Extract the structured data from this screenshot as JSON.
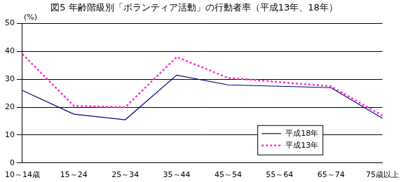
{
  "chart_data": {
    "type": "line",
    "title": "図5 年齢階級別「ボランティア活動」の行動者率（平成13年、18年）",
    "y_label": "(%)",
    "categories": [
      "10～14歳",
      "15～24",
      "25～34",
      "35～44",
      "45～54",
      "55～64",
      "65～74",
      "75歳以上"
    ],
    "series": [
      {
        "name": "平成18年",
        "color": "#000080",
        "line_style": "solid",
        "marker": "none",
        "values": [
          26,
          17.5,
          15.5,
          31.5,
          28,
          27.5,
          27,
          16
        ]
      },
      {
        "name": "平成13年",
        "color": "#ff33cc",
        "line_style": "dotted",
        "marker": "none",
        "values": [
          39,
          20.5,
          20,
          38,
          30.5,
          29,
          27.5,
          17
        ]
      }
    ],
    "ylim": [
      0,
      50
    ],
    "yticks": [
      0,
      10,
      20,
      30,
      40,
      50
    ],
    "grid": true,
    "legend": "lower right"
  }
}
